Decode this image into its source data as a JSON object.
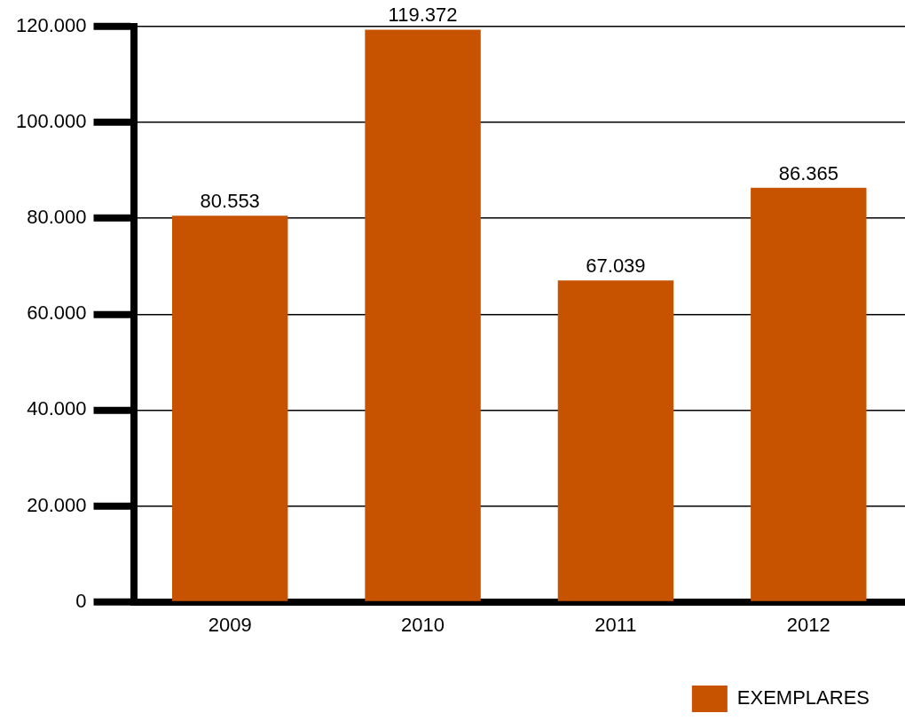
{
  "chart_data": {
    "type": "bar",
    "categories": [
      "2009",
      "2010",
      "2011",
      "2012"
    ],
    "series": [
      {
        "name": "EXEMPLARES",
        "color": "#c75200",
        "values": [
          80553,
          119372,
          67039,
          86365
        ],
        "value_labels": [
          "80.553",
          "119.372",
          "67.039",
          "86.365"
        ]
      }
    ],
    "ylim": [
      0,
      120000
    ],
    "yticks": [
      {
        "value": 0,
        "label": "0"
      },
      {
        "value": 20000,
        "label": "20.000"
      },
      {
        "value": 40000,
        "label": "40.000"
      },
      {
        "value": 60000,
        "label": "60.000"
      },
      {
        "value": 80000,
        "label": "80.000"
      },
      {
        "value": 100000,
        "label": "100.000"
      },
      {
        "value": 120000,
        "label": "120.000"
      }
    ],
    "grid": "y",
    "legend": "bottom right"
  }
}
